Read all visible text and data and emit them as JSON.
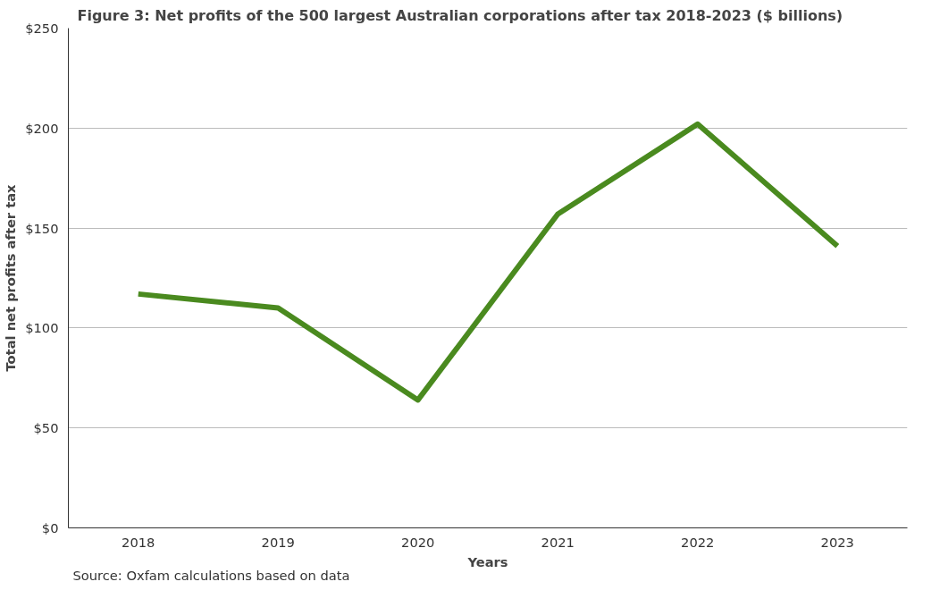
{
  "chart_data": {
    "type": "line",
    "title": "Figure 3: Net profits of the 500 largest Australian corporations after tax 2018-2023 ($ billions)",
    "xlabel": "Years",
    "ylabel": "Total net profits after tax",
    "categories": [
      "2018",
      "2019",
      "2020",
      "2021",
      "2022",
      "2023"
    ],
    "series": [
      {
        "color": "#4a8a1f",
        "values": [
          117,
          110,
          64,
          157,
          202,
          141
        ]
      }
    ],
    "ylim": [
      0,
      250
    ],
    "yticks": [
      {
        "value": 0,
        "label": "$0"
      },
      {
        "value": 50,
        "label": "$50"
      },
      {
        "value": 100,
        "label": "$100"
      },
      {
        "value": 150,
        "label": "$150"
      },
      {
        "value": 200,
        "label": "$200"
      },
      {
        "value": 250,
        "label": "$250"
      }
    ],
    "grid": "y",
    "marker": "none",
    "line_style": "solid",
    "annotations": [
      "Source: Oxfam calculations based on data"
    ]
  }
}
